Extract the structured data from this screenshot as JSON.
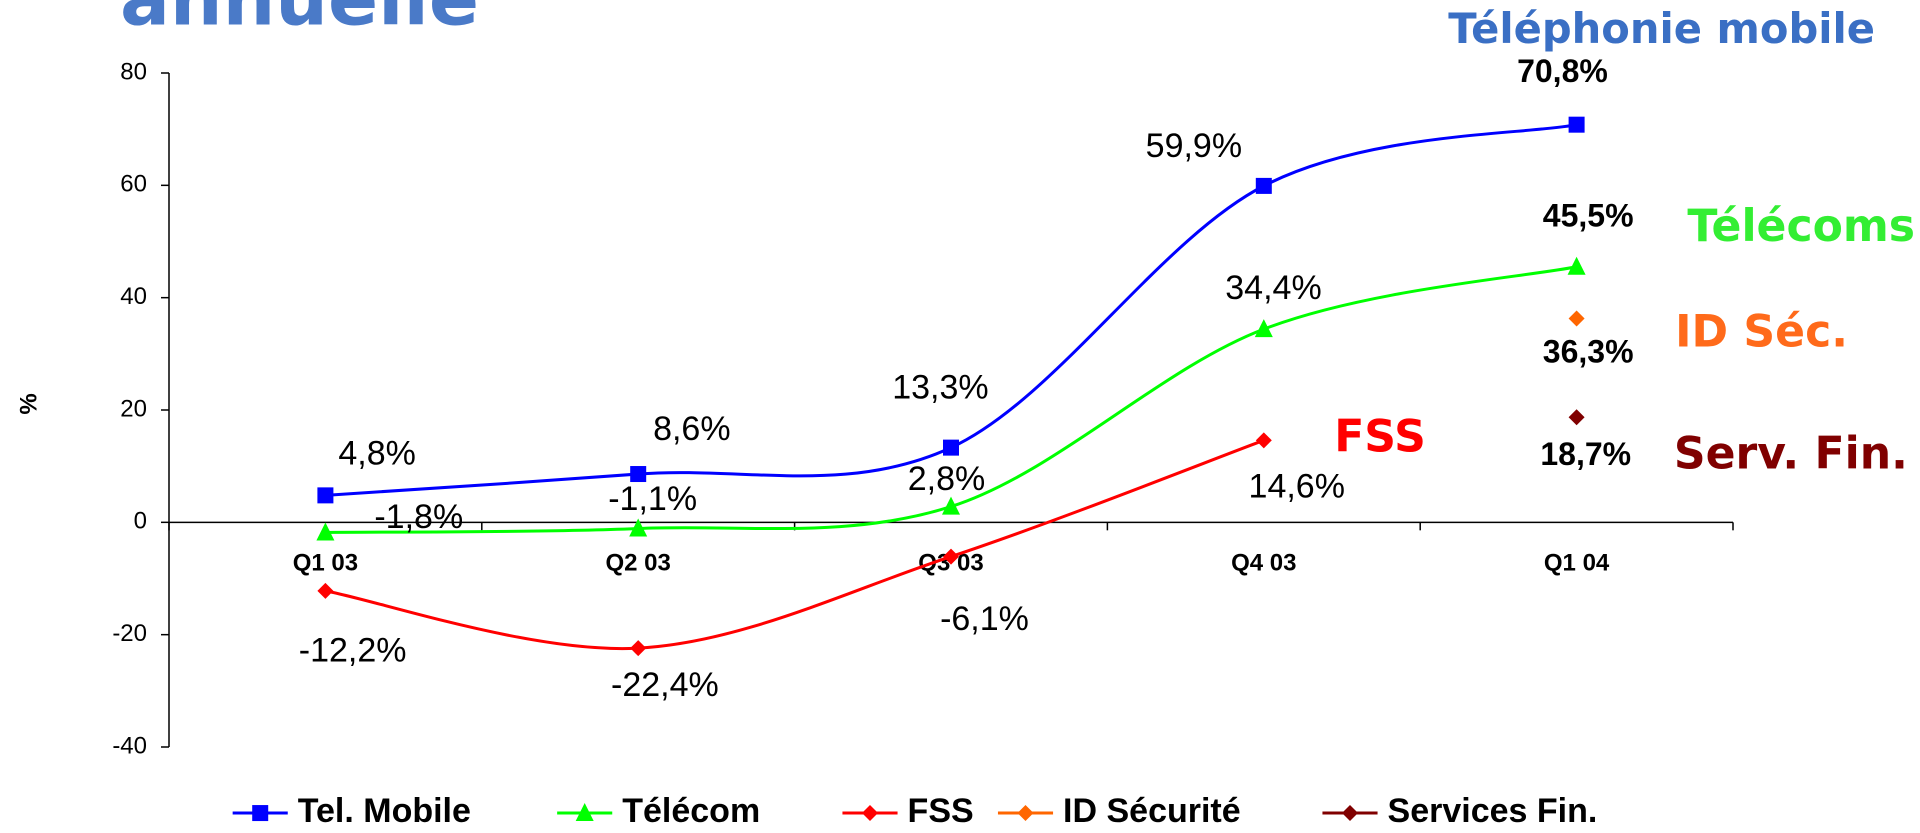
{
  "chart_data": {
    "type": "line",
    "title": "annuelle",
    "y_label": "%",
    "categories": [
      "Q1 03",
      "Q2 03",
      "Q3 03",
      "Q4 03",
      "Q1 04"
    ],
    "ylim": [
      -40,
      80
    ],
    "yticks": [
      -40,
      -20,
      0,
      20,
      40,
      60,
      80
    ],
    "grid": false,
    "series": [
      {
        "name": "Tel. Mobile",
        "color": "#0000ff",
        "marker": "square",
        "values": [
          4.8,
          8.6,
          13.3,
          59.9,
          70.8
        ],
        "value_labels": [
          "4,8%",
          "8,6%",
          "13,3%",
          "59,9%",
          "70,8%"
        ]
      },
      {
        "name": "Télécom",
        "color": "#00ff00",
        "marker": "triangle",
        "values": [
          -1.8,
          -1.1,
          2.8,
          34.4,
          45.5
        ],
        "value_labels": [
          "-1,8%",
          "-1,1%",
          "2,8%",
          "34,4%",
          "45,5%"
        ]
      },
      {
        "name": "FSS",
        "color": "#ff0000",
        "marker": "diamond",
        "values": [
          -12.2,
          -22.4,
          -6.1,
          14.6,
          null
        ],
        "value_labels": [
          "-12,2%",
          "-22,4%",
          "-6,1%",
          "14,6%",
          null
        ]
      },
      {
        "name": "ID Sécurité",
        "color": "#ff6600",
        "marker": "diamond",
        "values": [
          null,
          null,
          null,
          null,
          36.3
        ],
        "value_labels": [
          null,
          null,
          null,
          null,
          "36,3%"
        ]
      },
      {
        "name": "Services Fin.",
        "color": "#800000",
        "marker": "diamond",
        "values": [
          null,
          null,
          null,
          null,
          18.7
        ],
        "value_labels": [
          null,
          null,
          null,
          null,
          "18,7%"
        ]
      }
    ],
    "annotations": [
      {
        "text": "Téléphonie mobile",
        "color": "#3a6fc4"
      },
      {
        "text": "Télécoms",
        "color": "#33ee33"
      },
      {
        "text": "ID Séc.",
        "color": "#ff6a1a"
      },
      {
        "text": "FSS",
        "color": "#ff0000"
      },
      {
        "text": "Serv. Fin.",
        "color": "#800000"
      }
    ],
    "legend": "bottom"
  }
}
